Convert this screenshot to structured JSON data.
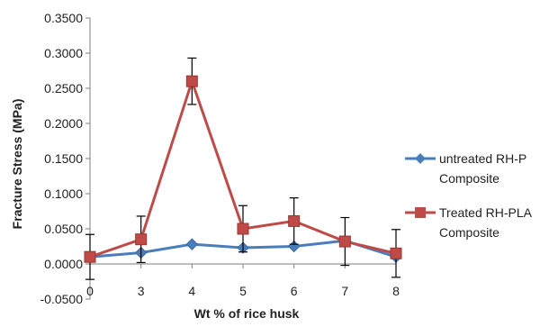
{
  "chart_data": {
    "type": "line",
    "title": "",
    "xlabel": "Wt % of rice husk",
    "ylabel": "Fracture Stress (MPa)",
    "categories": [
      "0",
      "3",
      "4",
      "5",
      "6",
      "7",
      "8"
    ],
    "ylim": [
      -0.05,
      0.35
    ],
    "y_ticks": [
      "-0.0500",
      "0.0000",
      "0.0500",
      "0.1000",
      "0.1500",
      "0.2000",
      "0.2500",
      "0.3000",
      "0.3500"
    ],
    "grid": false,
    "legend_position": "right",
    "series": [
      {
        "name": "untreated RH-PLA Composite",
        "legend_lines": [
          "untreated RH-P",
          "Composite"
        ],
        "color": "#4a7ebb",
        "marker": "diamond",
        "values": [
          0.01,
          0.016,
          0.028,
          0.023,
          0.025,
          0.033,
          0.01
        ]
      },
      {
        "name": "Treated RH-PLA Composite",
        "legend_lines": [
          "Treated RH-PLA",
          "Composite"
        ],
        "color": "#be4b48",
        "marker": "square",
        "values": [
          0.01,
          0.035,
          0.26,
          0.05,
          0.061,
          0.032,
          0.015
        ],
        "error": [
          0.032,
          0.033,
          0.033,
          0.033,
          0.033,
          0.034,
          0.034
        ]
      }
    ]
  }
}
